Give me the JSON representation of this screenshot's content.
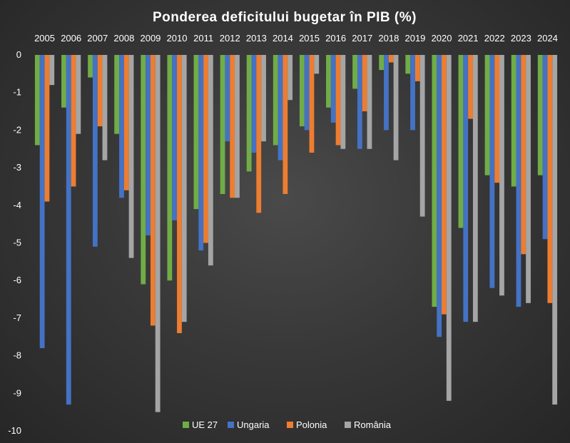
{
  "chart_data": {
    "type": "bar",
    "title": "Ponderea  deficitului  bugetar  în  PIB (%)",
    "categories": [
      "2005",
      "2006",
      "2007",
      "2008",
      "2009",
      "2010",
      "2011",
      "2012",
      "2013",
      "2014",
      "2015",
      "2016",
      "2017",
      "2018",
      "2019",
      "2020",
      "2021",
      "2022",
      "2023",
      "2024"
    ],
    "ylim": [
      -10,
      0
    ],
    "yticks": [
      0,
      -1,
      -2,
      -3,
      -4,
      -5,
      -6,
      -7,
      -8,
      -9,
      -10
    ],
    "category_labels_position": "top",
    "legend_position": "bottom",
    "grid": false,
    "series": [
      {
        "name": "UE 27",
        "color": "#70ad47",
        "values": [
          -2.4,
          -1.4,
          -0.6,
          -2.1,
          -6.1,
          -6.0,
          -4.1,
          -3.7,
          -3.1,
          -2.4,
          -1.9,
          -1.4,
          -0.9,
          -0.4,
          -0.5,
          -6.7,
          -4.6,
          -3.2,
          -3.5,
          -3.2
        ]
      },
      {
        "name": "Ungaria",
        "color": "#4472c4",
        "values": [
          -7.8,
          -9.3,
          -5.1,
          -3.8,
          -4.8,
          -4.4,
          -5.2,
          -2.3,
          -2.6,
          -2.8,
          -2.0,
          -1.8,
          -2.5,
          -2.0,
          -2.0,
          -7.5,
          -7.1,
          -6.2,
          -6.7,
          -4.9
        ]
      },
      {
        "name": "Polonia",
        "color": "#ed7d31",
        "values": [
          -3.9,
          -3.5,
          -1.9,
          -3.6,
          -7.2,
          -7.4,
          -5.0,
          -3.8,
          -4.2,
          -3.7,
          -2.6,
          -2.4,
          -1.5,
          -0.2,
          -0.7,
          -6.9,
          -1.7,
          -3.4,
          -5.3,
          -6.6
        ]
      },
      {
        "name": "România",
        "color": "#a5a5a5",
        "values": [
          -0.8,
          -2.1,
          -2.8,
          -5.4,
          -9.5,
          -7.1,
          -5.6,
          -3.8,
          -2.3,
          -1.2,
          -0.5,
          -2.5,
          -2.5,
          -2.8,
          -4.3,
          -9.2,
          -7.1,
          -6.4,
          -6.6,
          -9.3
        ]
      }
    ]
  }
}
